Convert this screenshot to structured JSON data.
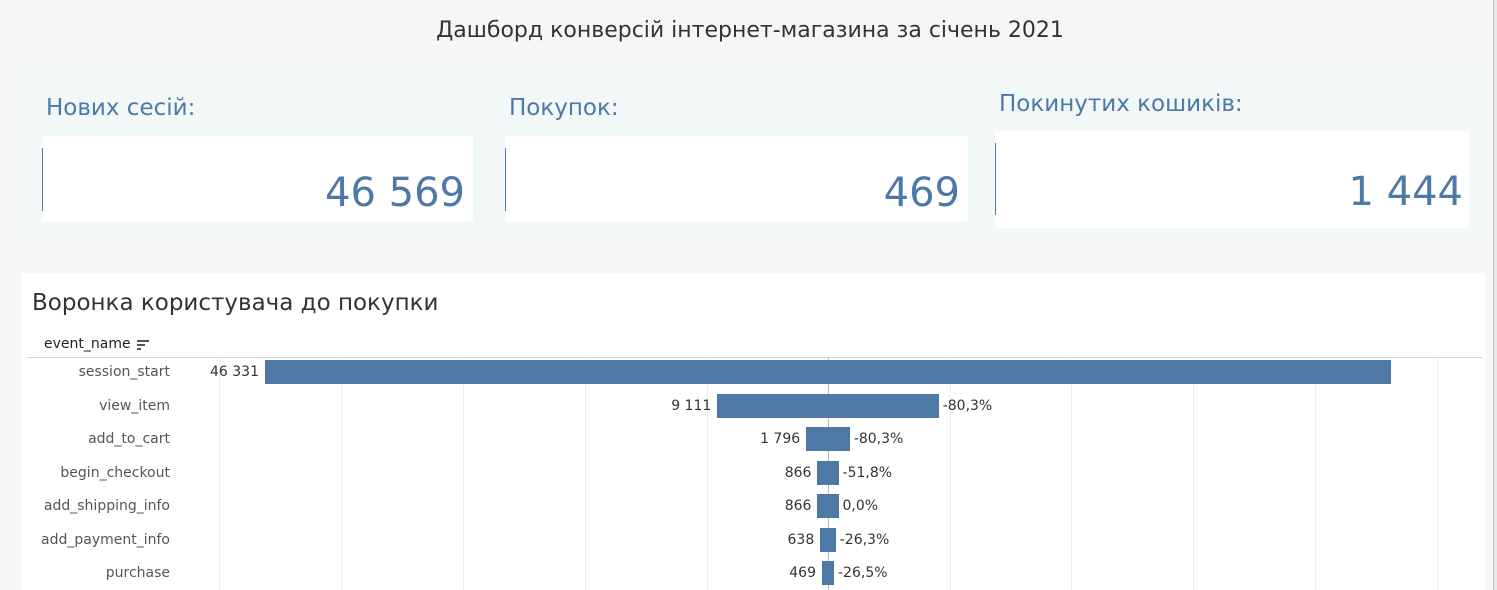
{
  "title": "Дашборд конверсій інтернет-магазина за січень 2021",
  "kpis": [
    {
      "label": "Нових сесій:",
      "value": "46 569"
    },
    {
      "label": "Покупок:",
      "value": "469"
    },
    {
      "label": "Покинутих кошиків:",
      "value": "1 444"
    }
  ],
  "funnel": {
    "title": "Воронка користувача до покупки",
    "column_header": "event_name",
    "sort_icon": "sort-descending-icon",
    "bar_color": "#4e79a7",
    "accent_color": "#4e79a7",
    "rows": [
      {
        "label": "session_start",
        "value_text": "46 331",
        "pct_text": ""
      },
      {
        "label": "view_item",
        "value_text": "9 111",
        "pct_text": "-80,3%"
      },
      {
        "label": "add_to_cart",
        "value_text": "1 796",
        "pct_text": "-80,3%"
      },
      {
        "label": "begin_checkout",
        "value_text": "866",
        "pct_text": "-51,8%"
      },
      {
        "label": "add_shipping_info",
        "value_text": "866",
        "pct_text": "0,0%"
      },
      {
        "label": "add_payment_info",
        "value_text": "638",
        "pct_text": "-26,3%"
      },
      {
        "label": "purchase",
        "value_text": "469",
        "pct_text": "-26,5%"
      }
    ]
  },
  "chart_data": {
    "type": "bar",
    "title": "Воронка користувача до покупки",
    "categories": [
      "session_start",
      "view_item",
      "add_to_cart",
      "begin_checkout",
      "add_shipping_info",
      "add_payment_info",
      "purchase"
    ],
    "values": [
      46331,
      9111,
      1796,
      866,
      866,
      638,
      469
    ],
    "change_pct": [
      null,
      -80.3,
      -80.3,
      -51.8,
      0.0,
      -26.3,
      -26.5
    ],
    "xlabel": "",
    "ylabel": "event_name",
    "orientation": "horizontal-centered",
    "grid": true
  }
}
